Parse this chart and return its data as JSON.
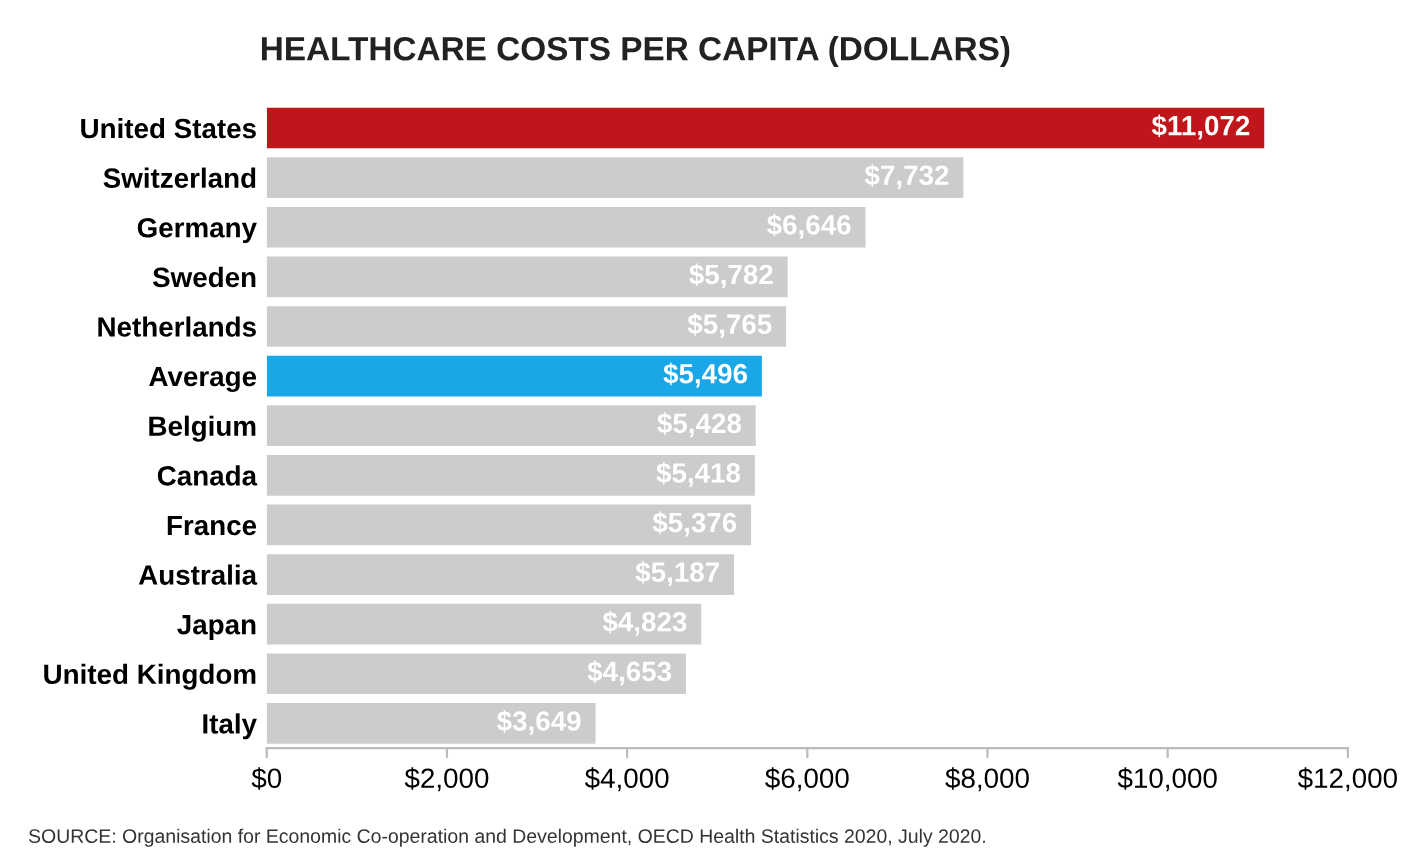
{
  "chart_data": {
    "type": "bar",
    "orientation": "horizontal",
    "title": "HEALTHCARE COSTS PER CAPITA (DOLLARS)",
    "categories": [
      "United States",
      "Switzerland",
      "Germany",
      "Sweden",
      "Netherlands",
      "Average",
      "Belgium",
      "Canada",
      "France",
      "Australia",
      "Japan",
      "United Kingdom",
      "Italy"
    ],
    "values": [
      11072,
      7732,
      6646,
      5782,
      5765,
      5496,
      5428,
      5418,
      5376,
      5187,
      4823,
      4653,
      3649
    ],
    "colors": [
      "#c0161b",
      "#cccccc",
      "#cccccc",
      "#cccccc",
      "#cccccc",
      "#1aa7e8",
      "#cccccc",
      "#cccccc",
      "#cccccc",
      "#cccccc",
      "#cccccc",
      "#cccccc",
      "#cccccc"
    ],
    "value_labels": [
      "$11,072",
      "$7,732",
      "$6,646",
      "$5,782",
      "$5,765",
      "$5,496",
      "$5,428",
      "$5,418",
      "$5,376",
      "$5,187",
      "$4,823",
      "$4,653",
      "$3,649"
    ],
    "xlim": [
      0,
      12000
    ],
    "xticks": [
      {
        "value": 0,
        "label": "$0"
      },
      {
        "value": 2000,
        "label": "$2,000"
      },
      {
        "value": 4000,
        "label": "$4,000"
      },
      {
        "value": 6000,
        "label": "$6,000"
      },
      {
        "value": 8000,
        "label": "$8,000"
      },
      {
        "value": 10000,
        "label": "$10,000"
      },
      {
        "value": 12000,
        "label": "$12,000"
      }
    ],
    "annotations": [
      "SOURCE: Organisation for Economic Co-operation and Development, OECD Health Statistics 2020, July 2020."
    ],
    "grid": false,
    "legend": false
  }
}
